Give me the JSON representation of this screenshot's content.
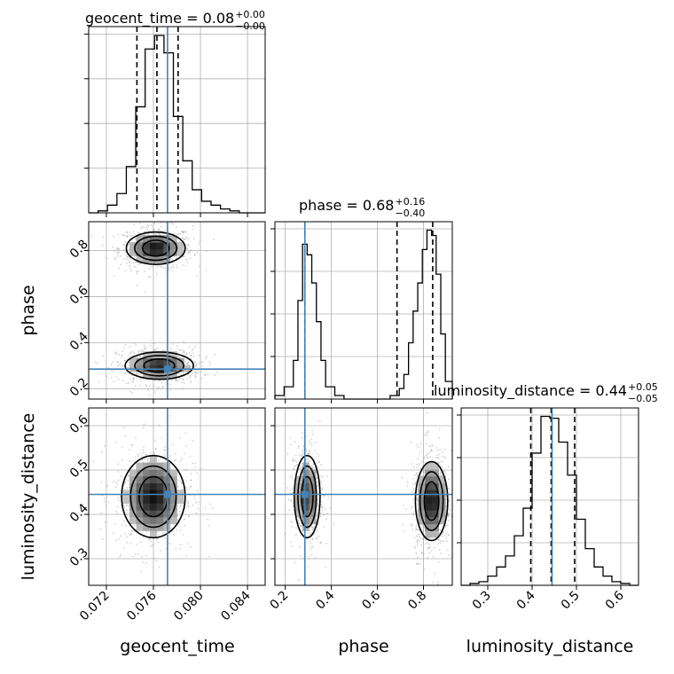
{
  "chart_data": {
    "type": "corner",
    "parameters": [
      "geocent_time",
      "phase",
      "luminosity_distance"
    ],
    "titles": [
      {
        "param": "geocent_time",
        "text": "geocent_time = 0.08",
        "sup": "+0.00",
        "sub": "−0.00"
      },
      {
        "param": "phase",
        "text": "phase = 0.68",
        "sup": "+0.16",
        "sub": "−0.40"
      },
      {
        "param": "luminosity_distance",
        "text": "luminosity_distance = 0.44",
        "sup": "+0.05",
        "sub": "−0.05"
      }
    ],
    "axis_ranges": {
      "geocent_time": [
        0.0705,
        0.0855
      ],
      "phase": [
        0.155,
        0.925
      ],
      "luminosity_distance": [
        0.24,
        0.64
      ]
    },
    "ticks": {
      "geocent_time": [
        0.072,
        0.076,
        0.08,
        0.084
      ],
      "phase": [
        0.2,
        0.4,
        0.6,
        0.8
      ],
      "luminosity_distance": [
        0.3,
        0.4,
        0.5,
        0.6
      ]
    },
    "tick_labels": {
      "geocent_time": [
        "0.072",
        "0.076",
        "0.080",
        "0.084"
      ],
      "phase": [
        "0.2",
        "0.4",
        "0.6",
        "0.8"
      ],
      "luminosity_distance": [
        "0.3",
        "0.4",
        "0.5",
        "0.6"
      ]
    },
    "truths": {
      "geocent_time": 0.0772,
      "phase": 0.285,
      "luminosity_distance": 0.445
    },
    "quantiles": {
      "geocent_time": [
        0.0746,
        0.0763,
        0.0781
      ],
      "phase": [
        0.285,
        0.685,
        0.84
      ],
      "luminosity_distance": [
        0.397,
        0.443,
        0.496
      ]
    },
    "histograms": {
      "geocent_time": {
        "edges": [
          0.0705,
          0.0713,
          0.0721,
          0.0729,
          0.0737,
          0.0745,
          0.0753,
          0.0761,
          0.0769,
          0.0777,
          0.0785,
          0.0793,
          0.0801,
          0.0809,
          0.0817,
          0.0825,
          0.0833,
          0.0841,
          0.0849,
          0.0855
        ],
        "counts": [
          0.0,
          0.01,
          0.04,
          0.1,
          0.24,
          0.55,
          0.85,
          0.92,
          0.83,
          0.5,
          0.27,
          0.12,
          0.06,
          0.04,
          0.02,
          0.01,
          0.0,
          0.0,
          0.0
        ]
      },
      "phase": {
        "edges": [
          0.155,
          0.195,
          0.235,
          0.255,
          0.275,
          0.295,
          0.315,
          0.335,
          0.355,
          0.375,
          0.415,
          0.455,
          0.495,
          0.535,
          0.575,
          0.615,
          0.655,
          0.695,
          0.715,
          0.735,
          0.755,
          0.775,
          0.795,
          0.815,
          0.835,
          0.855,
          0.875,
          0.895,
          0.925
        ],
        "counts": [
          0.02,
          0.07,
          0.22,
          0.56,
          0.88,
          0.82,
          0.66,
          0.44,
          0.22,
          0.07,
          0.02,
          0.0,
          0.0,
          0.0,
          0.0,
          0.0,
          0.02,
          0.06,
          0.14,
          0.32,
          0.5,
          0.66,
          0.85,
          0.96,
          0.93,
          0.71,
          0.37,
          0.1
        ]
      },
      "luminosity_distance": {
        "edges": [
          0.24,
          0.26,
          0.28,
          0.3,
          0.32,
          0.34,
          0.36,
          0.38,
          0.4,
          0.42,
          0.44,
          0.46,
          0.48,
          0.5,
          0.52,
          0.54,
          0.56,
          0.58,
          0.6,
          0.62,
          0.64
        ],
        "counts": [
          0.0,
          0.01,
          0.02,
          0.05,
          0.1,
          0.16,
          0.27,
          0.42,
          0.72,
          0.92,
          0.91,
          0.78,
          0.6,
          0.36,
          0.2,
          0.1,
          0.05,
          0.02,
          0.01,
          0.0
        ]
      }
    },
    "grid": true
  }
}
